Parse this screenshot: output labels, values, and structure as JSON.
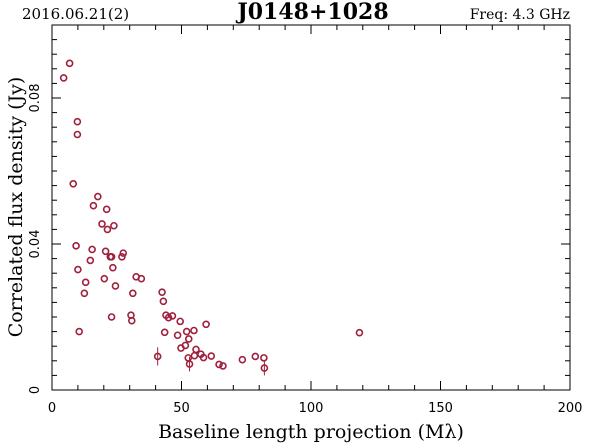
{
  "header": {
    "left": "2016.06.21(2)",
    "title": "J0148+1028",
    "right": "Freq: 4.3 GHz",
    "right_color": "#a0203c"
  },
  "chart_data": {
    "type": "scatter",
    "xlabel": "Baseline length projection (Mλ)",
    "ylabel": "Correlated flux density (Jy)",
    "xlim": [
      0,
      200
    ],
    "ylim": [
      0,
      0.1
    ],
    "xticks": [
      0,
      50,
      100,
      150,
      200
    ],
    "xtick_labels": [
      "0",
      "50",
      "100",
      "150",
      "200"
    ],
    "yticks": [
      0,
      0.04,
      0.08
    ],
    "ytick_labels": [
      "0",
      "0.04",
      "0.08"
    ],
    "grid": false,
    "marker_color": "#a0203c",
    "points": [
      {
        "x": 4.5,
        "y": 0.0855
      },
      {
        "x": 6.8,
        "y": 0.0895
      },
      {
        "x": 8.2,
        "y": 0.0565
      },
      {
        "x": 9.3,
        "y": 0.0395
      },
      {
        "x": 9.8,
        "y": 0.0735
      },
      {
        "x": 9.8,
        "y": 0.07
      },
      {
        "x": 10.0,
        "y": 0.033
      },
      {
        "x": 10.5,
        "y": 0.016
      },
      {
        "x": 12.5,
        "y": 0.0265
      },
      {
        "x": 13.0,
        "y": 0.0295
      },
      {
        "x": 14.8,
        "y": 0.0355
      },
      {
        "x": 15.5,
        "y": 0.0385
      },
      {
        "x": 16.0,
        "y": 0.0505
      },
      {
        "x": 17.7,
        "y": 0.053
      },
      {
        "x": 19.3,
        "y": 0.0455
      },
      {
        "x": 20.2,
        "y": 0.0305
      },
      {
        "x": 20.7,
        "y": 0.038
      },
      {
        "x": 21.1,
        "y": 0.0495
      },
      {
        "x": 21.4,
        "y": 0.044
      },
      {
        "x": 22.5,
        "y": 0.0365
      },
      {
        "x": 23.0,
        "y": 0.02
      },
      {
        "x": 23.0,
        "y": 0.0365
      },
      {
        "x": 23.5,
        "y": 0.0335
      },
      {
        "x": 23.9,
        "y": 0.045
      },
      {
        "x": 24.5,
        "y": 0.0285
      },
      {
        "x": 27.0,
        "y": 0.0365
      },
      {
        "x": 27.5,
        "y": 0.0375
      },
      {
        "x": 30.5,
        "y": 0.0205
      },
      {
        "x": 30.8,
        "y": 0.019
      },
      {
        "x": 31.2,
        "y": 0.0265
      },
      {
        "x": 32.5,
        "y": 0.031
      },
      {
        "x": 34.5,
        "y": 0.0305
      },
      {
        "x": 40.8,
        "y": 0.0092,
        "err": 0.0025
      },
      {
        "x": 42.5,
        "y": 0.0268
      },
      {
        "x": 43.0,
        "y": 0.0243
      },
      {
        "x": 43.5,
        "y": 0.0158
      },
      {
        "x": 44.0,
        "y": 0.0205
      },
      {
        "x": 45.0,
        "y": 0.0198
      },
      {
        "x": 46.5,
        "y": 0.0203
      },
      {
        "x": 48.5,
        "y": 0.015
      },
      {
        "x": 49.5,
        "y": 0.0188
      },
      {
        "x": 49.8,
        "y": 0.0115
      },
      {
        "x": 51.5,
        "y": 0.0122
      },
      {
        "x": 52.0,
        "y": 0.016
      },
      {
        "x": 52.6,
        "y": 0.0088
      },
      {
        "x": 52.8,
        "y": 0.014
      },
      {
        "x": 53.1,
        "y": 0.0071,
        "err": 0.002
      },
      {
        "x": 54.8,
        "y": 0.0163
      },
      {
        "x": 55.0,
        "y": 0.0094
      },
      {
        "x": 55.6,
        "y": 0.0111
      },
      {
        "x": 57.5,
        "y": 0.0098
      },
      {
        "x": 58.5,
        "y": 0.0089
      },
      {
        "x": 59.5,
        "y": 0.018
      },
      {
        "x": 61.5,
        "y": 0.0093
      },
      {
        "x": 64.5,
        "y": 0.007
      },
      {
        "x": 66.0,
        "y": 0.0066
      },
      {
        "x": 73.5,
        "y": 0.0083
      },
      {
        "x": 78.5,
        "y": 0.0092
      },
      {
        "x": 81.8,
        "y": 0.0088
      },
      {
        "x": 82.0,
        "y": 0.006,
        "err": 0.002
      },
      {
        "x": 118.7,
        "y": 0.0157
      }
    ]
  }
}
